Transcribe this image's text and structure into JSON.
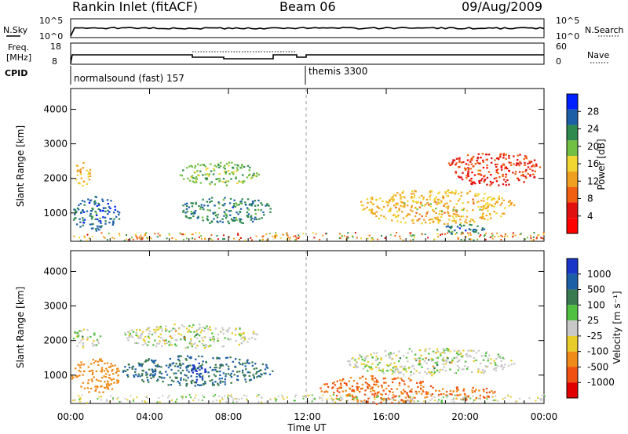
{
  "header": {
    "station": "Rankin Inlet (fitACF)",
    "beam": "Beam 06",
    "date": "09/Aug/2009"
  },
  "top_panels": {
    "nsky_label": "N.Sky",
    "nsearch_label": "N.Search",
    "nsky_ticks": [
      "10^5",
      "10^0"
    ],
    "nsearch_ticks": [
      "10^5",
      "10^0"
    ],
    "freq_label_1": "Freq.",
    "freq_label_2": "[MHz]",
    "freq_ticks": [
      "18",
      "8"
    ],
    "nave_label": "Nave",
    "nave_ticks": [
      "60",
      "0"
    ],
    "cpid_label": "CPID",
    "cpid_modes": [
      "normalsound (fast) 157",
      "themis 3300"
    ]
  },
  "colors": {
    "power_scale": [
      "#0020ff",
      "#1d5fa7",
      "#2e8a4f",
      "#72c043",
      "#f1d530",
      "#f0a020",
      "#f06010",
      "#e01010",
      "#ff0000"
    ],
    "velocity_scale": [
      "#1a36c8",
      "#1d5fa7",
      "#3a7a50",
      "#50c040",
      "#c8c8c8",
      "#e8cc28",
      "#f08a18",
      "#f05010",
      "#e00000"
    ]
  },
  "chart_data": [
    {
      "type": "heatmap",
      "panel": "power",
      "xlabel": "",
      "ylabel": "Slant Range [km]",
      "xlim": [
        "00:00",
        "00:00"
      ],
      "ylim": [
        180,
        4600
      ],
      "yticks": [
        "4000",
        "3000",
        "2000",
        "1000"
      ],
      "colorbar_label": "Power [dB]",
      "colorbar_ticks": [
        "28",
        "24",
        "20",
        "16",
        "12",
        "8",
        "4"
      ],
      "colorbar_range": [
        0,
        32
      ],
      "echo_regions": [
        {
          "t_start": 0.1,
          "t_end": 1.0,
          "range_low": 1800,
          "range_high": 2500,
          "power": 14
        },
        {
          "t_start": 0.0,
          "t_end": 2.5,
          "range_low": 500,
          "range_high": 1500,
          "power": 26
        },
        {
          "t_start": 5.5,
          "t_end": 9.5,
          "range_low": 1800,
          "range_high": 2500,
          "power": 20
        },
        {
          "t_start": 5.5,
          "t_end": 10.2,
          "range_low": 700,
          "range_high": 1500,
          "power": 24
        },
        {
          "t_start": 14.5,
          "t_end": 22.5,
          "range_low": 700,
          "range_high": 1700,
          "power": 14
        },
        {
          "t_start": 18.5,
          "t_end": 21.0,
          "range_low": 400,
          "range_high": 700,
          "power": 24
        },
        {
          "t_start": 19.0,
          "t_end": 23.8,
          "range_low": 1800,
          "range_high": 2800,
          "power": 6
        }
      ]
    },
    {
      "type": "heatmap",
      "panel": "velocity",
      "xlabel": "Time UT",
      "ylabel": "Slant Range [km]",
      "xticks": [
        "00:00",
        "04:00",
        "08:00",
        "12:00",
        "16:00",
        "20:00",
        "00:00"
      ],
      "xlim": [
        "00:00",
        "00:00"
      ],
      "ylim": [
        180,
        4600
      ],
      "yticks": [
        "4000",
        "3000",
        "2000",
        "1000"
      ],
      "colorbar_label": "Velocity [m s⁻¹]",
      "colorbar_ticks": [
        "1000",
        "500",
        "100",
        "25",
        "-25",
        "-100",
        "-500",
        "-1000"
      ],
      "echo_regions": [
        {
          "t_start": 0.0,
          "t_end": 1.5,
          "range_low": 1800,
          "range_high": 2400,
          "velocity": 0
        },
        {
          "t_start": 0.0,
          "t_end": 2.5,
          "range_low": 500,
          "range_high": 1500,
          "velocity": -200
        },
        {
          "t_start": 2.5,
          "t_end": 9.5,
          "range_low": 1800,
          "range_high": 2500,
          "velocity": 0
        },
        {
          "t_start": 2.5,
          "t_end": 10.2,
          "range_low": 700,
          "range_high": 1600,
          "velocity": 300
        },
        {
          "t_start": 6.0,
          "t_end": 6.8,
          "range_low": 800,
          "range_high": 1400,
          "velocity": 1000
        },
        {
          "t_start": 12.5,
          "t_end": 18.5,
          "range_low": 180,
          "range_high": 1000,
          "velocity": -300
        },
        {
          "t_start": 18.5,
          "t_end": 21.5,
          "range_low": 300,
          "range_high": 700,
          "velocity": -300
        },
        {
          "t_start": 14.0,
          "t_end": 22.5,
          "range_low": 1000,
          "range_high": 1800,
          "velocity": 0
        }
      ]
    }
  ]
}
